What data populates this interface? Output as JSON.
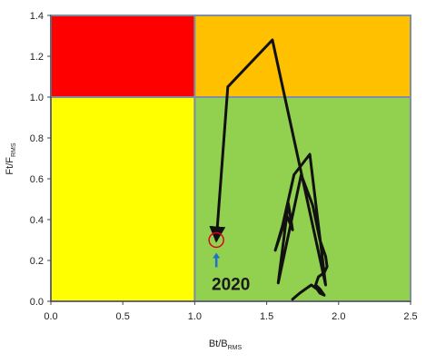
{
  "chart_data": {
    "type": "line",
    "title": "",
    "xlabel": {
      "main": "Bt/B",
      "sub": "RMS"
    },
    "ylabel": {
      "main": "Ft/F",
      "sub": "RMS"
    },
    "xlim": [
      0,
      2.5
    ],
    "ylim": [
      0,
      1.4
    ],
    "x_ticks": [
      "0.0",
      "0.5",
      "1.0",
      "1.5",
      "2.0",
      "2.5"
    ],
    "y_ticks": [
      "0.0",
      "0.2",
      "0.4",
      "0.6",
      "0.8",
      "1.0",
      "1.2",
      "1.4"
    ],
    "grid": false,
    "legend": "none",
    "zones": [
      {
        "name": "red",
        "x": [
          0,
          1.0
        ],
        "y": [
          1.0,
          1.4
        ],
        "color": "#ff0000"
      },
      {
        "name": "orange",
        "x": [
          1.0,
          2.5
        ],
        "y": [
          1.0,
          1.4
        ],
        "color": "#ffc000"
      },
      {
        "name": "yellow",
        "x": [
          0,
          1.0
        ],
        "y": [
          0,
          1.0
        ],
        "color": "#ffff00"
      },
      {
        "name": "green",
        "x": [
          1.0,
          2.5
        ],
        "y": [
          0,
          1.0
        ],
        "color": "#92d050"
      }
    ],
    "zone_border_color": "#7f8ea0",
    "series": [
      {
        "color": "#111111",
        "x": [
          1.68,
          1.73,
          1.81,
          1.85,
          1.87,
          1.9,
          1.87,
          1.84,
          1.86,
          1.9,
          1.92,
          1.91,
          1.87,
          1.82,
          1.74,
          1.58,
          1.65,
          1.68,
          1.64,
          1.56,
          1.61,
          1.69,
          1.8,
          1.91,
          1.54,
          1.23,
          1.15
        ],
        "y": [
          0.01,
          0.04,
          0.08,
          0.06,
          0.04,
          0.03,
          0.06,
          0.08,
          0.12,
          0.14,
          0.17,
          0.22,
          0.3,
          0.47,
          0.62,
          0.09,
          0.48,
          0.35,
          0.42,
          0.25,
          0.37,
          0.62,
          0.72,
          0.08,
          1.28,
          1.05,
          0.3
        ]
      }
    ],
    "annotations": {
      "label": "2020",
      "label_x": 1.15,
      "label_y": 0.07,
      "arrow_color": "#1f6fd1",
      "circle_color": "#e0001b",
      "circle_x": 1.15,
      "circle_y": 0.3
    }
  }
}
